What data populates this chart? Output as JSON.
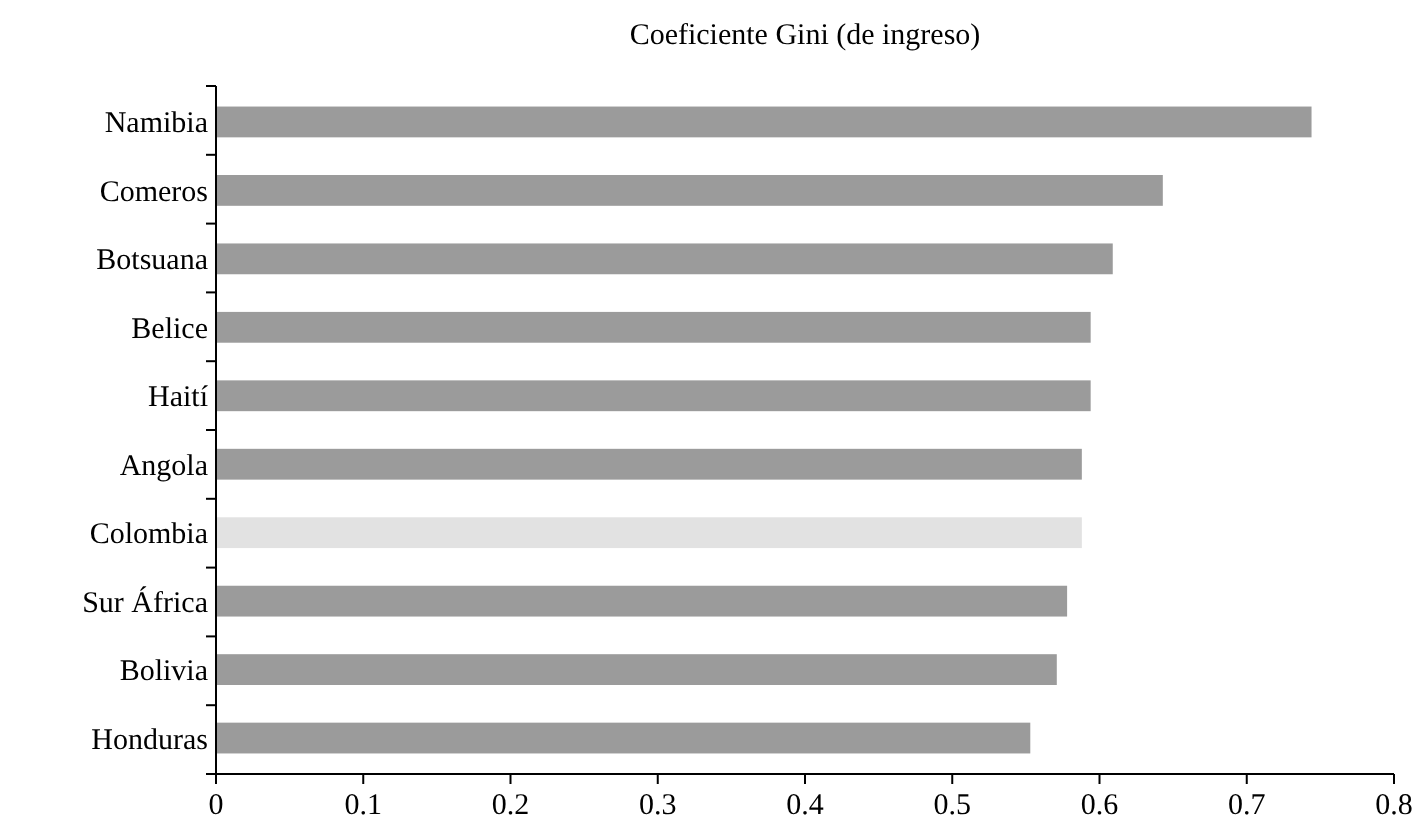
{
  "chart_data": {
    "type": "bar",
    "orientation": "horizontal",
    "title": "Coeficiente Gini (de ingreso)",
    "categories": [
      "Namibia",
      "Comeros",
      "Botsuana",
      "Belice",
      "Haití",
      "Angola",
      "Colombia",
      "Sur África",
      "Bolivia",
      "Honduras"
    ],
    "values": [
      0.744,
      0.643,
      0.609,
      0.594,
      0.594,
      0.588,
      0.588,
      0.578,
      0.571,
      0.553
    ],
    "colors": [
      "#9b9b9b",
      "#9b9b9b",
      "#9b9b9b",
      "#9b9b9b",
      "#9b9b9b",
      "#9b9b9b",
      "#e2e2e2",
      "#9b9b9b",
      "#9b9b9b",
      "#9b9b9b"
    ],
    "xlim": [
      0,
      0.8
    ],
    "xticks": [
      0,
      0.1,
      0.2,
      0.3,
      0.4,
      0.5,
      0.6,
      0.7,
      0.8
    ],
    "grid": false
  }
}
